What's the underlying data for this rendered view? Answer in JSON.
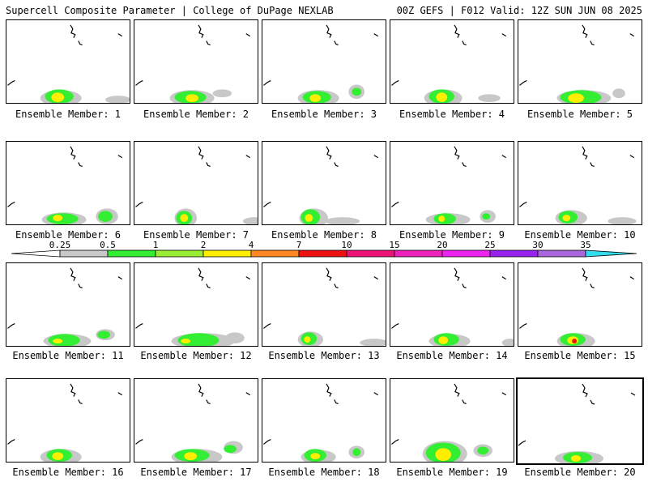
{
  "header": {
    "left_title": "Supercell Composite Parameter | College of DuPage NEXLAB",
    "right_title": "00Z GEFS | F012 Valid: 12Z SUN JUN 08 2025"
  },
  "panels": [
    {
      "label": "Ensemble Member: 1"
    },
    {
      "label": "Ensemble Member: 2"
    },
    {
      "label": "Ensemble Member: 3"
    },
    {
      "label": "Ensemble Member: 4"
    },
    {
      "label": "Ensemble Member: 5"
    },
    {
      "label": "Ensemble Member: 6"
    },
    {
      "label": "Ensemble Member: 7"
    },
    {
      "label": "Ensemble Member: 8"
    },
    {
      "label": "Ensemble Member: 9"
    },
    {
      "label": "Ensemble Member: 10"
    },
    {
      "label": "Ensemble Member: 11"
    },
    {
      "label": "Ensemble Member: 12"
    },
    {
      "label": "Ensemble Member: 13"
    },
    {
      "label": "Ensemble Member: 14"
    },
    {
      "label": "Ensemble Member: 15"
    },
    {
      "label": "Ensemble Member: 16"
    },
    {
      "label": "Ensemble Member: 17"
    },
    {
      "label": "Ensemble Member: 18"
    },
    {
      "label": "Ensemble Member: 19"
    },
    {
      "label": "Ensemble Member: 20"
    }
  ],
  "colorbar": {
    "ticks": [
      "0.25",
      "0.5",
      "1",
      "2",
      "4",
      "7",
      "10",
      "15",
      "20",
      "25",
      "30",
      "35"
    ],
    "colors": [
      "#c8c8c8",
      "#33ee33",
      "#99ee33",
      "#ffee00",
      "#ff8822",
      "#ee1111",
      "#ee1177",
      "#ee22bb",
      "#ee22ee",
      "#9922ee",
      "#aa66dd",
      "#33ddee"
    ]
  },
  "map_colors": {
    "gray": "#c8c8c8",
    "green": "#33ee33",
    "yellow": "#ffee00",
    "red": "#ee1111"
  }
}
